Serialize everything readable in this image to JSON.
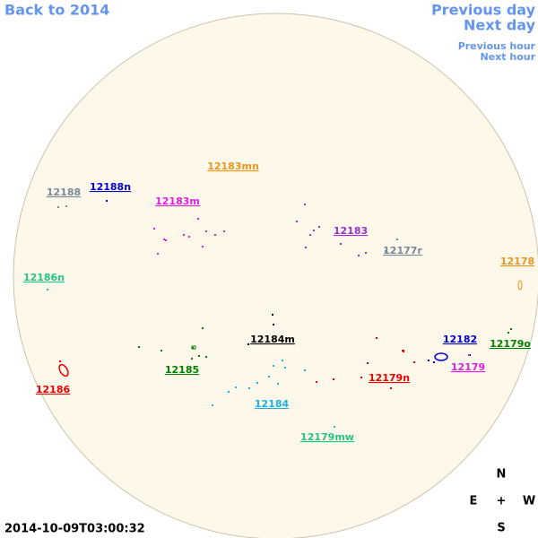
{
  "nav": {
    "back_year": "Back to 2014",
    "previous_day": "Previous day",
    "next_day": "Next day",
    "previous_hour": "Previous hour",
    "next_hour": "Next hour"
  },
  "regions": [
    {
      "label": "12183mn",
      "color": "#e8961e"
    },
    {
      "label": "12188",
      "color": "#778899"
    },
    {
      "label": "12188n",
      "color": "#0000cc"
    },
    {
      "label": "12183m",
      "color": "#e020e0"
    },
    {
      "label": "12183",
      "color": "#9932cc"
    },
    {
      "label": "12177r",
      "color": "#778899"
    },
    {
      "label": "12178",
      "color": "#e8961e"
    },
    {
      "label": "12186n",
      "color": "#22c488"
    },
    {
      "label": "12184m",
      "color": "#000000"
    },
    {
      "label": "12182",
      "color": "#0000cc"
    },
    {
      "label": "12179o",
      "color": "#008000"
    },
    {
      "label": "12185",
      "color": "#008000"
    },
    {
      "label": "12179",
      "color": "#e020e0"
    },
    {
      "label": "12179n",
      "color": "#ee0000"
    },
    {
      "label": "12186",
      "color": "#ee0000"
    },
    {
      "label": "12184",
      "color": "#1ab0e0"
    },
    {
      "label": "12179mw",
      "color": "#22c488"
    }
  ],
  "compass": {
    "north": "N",
    "east": "E",
    "center": "+",
    "west": "W",
    "south": "S"
  },
  "timestamp": "2014-10-09T03:00:32"
}
